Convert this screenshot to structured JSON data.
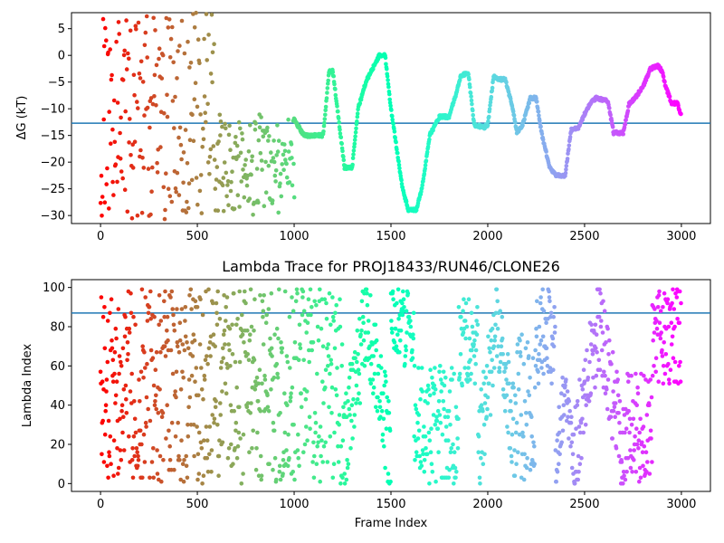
{
  "chart_data": [
    {
      "type": "scatter",
      "title": "",
      "xlabel": "",
      "ylabel": "ΔG (kT)",
      "xlim": [
        -150,
        3150
      ],
      "ylim": [
        -31.5,
        8.0
      ],
      "xticks": [
        0,
        500,
        1000,
        1500,
        2000,
        2500,
        3000
      ],
      "yticks": [
        -30,
        -25,
        -20,
        -15,
        -10,
        -5,
        0,
        5
      ],
      "reference_line": {
        "y": -12.7,
        "color": "#1f77b4"
      },
      "colormap": "rainbow",
      "series": [
        {
          "noisy_segments": [
            [
              0,
              150,
              -31,
              7
            ],
            [
              150,
              600,
              -31,
              8
            ],
            [
              600,
              1000,
              -30,
              -11
            ]
          ],
          "trend_points": [
            [
              1000,
              -12
            ],
            [
              1050,
              -15
            ],
            [
              1150,
              -15
            ],
            [
              1180,
              -3
            ],
            [
              1200,
              -3
            ],
            [
              1260,
              -21
            ],
            [
              1300,
              -21
            ],
            [
              1330,
              -10
            ],
            [
              1370,
              -5
            ],
            [
              1440,
              0
            ],
            [
              1470,
              0
            ],
            [
              1500,
              -10
            ],
            [
              1560,
              -25
            ],
            [
              1590,
              -29
            ],
            [
              1630,
              -29
            ],
            [
              1660,
              -25
            ],
            [
              1700,
              -15
            ],
            [
              1750,
              -11.5
            ],
            [
              1800,
              -11.5
            ],
            [
              1830,
              -8
            ],
            [
              1860,
              -4
            ],
            [
              1880,
              -3.5
            ],
            [
              1900,
              -3.5
            ],
            [
              1930,
              -13
            ],
            [
              1980,
              -13.5
            ],
            [
              2000,
              -13
            ],
            [
              2030,
              -4
            ],
            [
              2060,
              -4.5
            ],
            [
              2090,
              -4.5
            ],
            [
              2130,
              -10
            ],
            [
              2150,
              -14.5
            ],
            [
              2180,
              -13
            ],
            [
              2220,
              -8
            ],
            [
              2250,
              -8
            ],
            [
              2280,
              -15
            ],
            [
              2320,
              -21
            ],
            [
              2350,
              -22.5
            ],
            [
              2400,
              -22.5
            ],
            [
              2430,
              -14
            ],
            [
              2470,
              -13.5
            ],
            [
              2500,
              -11
            ],
            [
              2530,
              -9
            ],
            [
              2560,
              -8
            ],
            [
              2620,
              -8.5
            ],
            [
              2650,
              -14.5
            ],
            [
              2700,
              -14.5
            ],
            [
              2730,
              -9
            ],
            [
              2760,
              -8
            ],
            [
              2800,
              -6
            ],
            [
              2840,
              -2.5
            ],
            [
              2880,
              -2
            ],
            [
              2900,
              -3
            ],
            [
              2920,
              -6
            ],
            [
              2950,
              -9
            ],
            [
              2980,
              -9
            ],
            [
              3000,
              -11.5
            ]
          ]
        }
      ]
    },
    {
      "type": "scatter",
      "title": "Lambda Trace for PROJ18433/RUN46/CLONE26",
      "xlabel": "Frame Index",
      "ylabel": "Lambda Index",
      "xlim": [
        -150,
        3150
      ],
      "ylim": [
        -4,
        104
      ],
      "xticks": [
        0,
        500,
        1000,
        1500,
        2000,
        2500,
        3000
      ],
      "yticks": [
        0,
        20,
        40,
        60,
        80,
        100
      ],
      "reference_line": {
        "y": 87,
        "color": "#1f77b4"
      },
      "colormap": "rainbow",
      "series": [
        {
          "segments": [
            [
              0,
              1000,
              0,
              100,
              "random"
            ],
            [
              1000,
              1250,
              0,
              100,
              "random"
            ],
            [
              1250,
              1500,
              0,
              100,
              "sweep"
            ],
            [
              1500,
              1620,
              60,
              100,
              "random"
            ],
            [
              1620,
              1850,
              0,
              60,
              "random"
            ],
            [
              1850,
              1950,
              50,
              95,
              "random"
            ],
            [
              1950,
              2150,
              0,
              100,
              "sweep"
            ],
            [
              2150,
              2250,
              0,
              80,
              "random"
            ],
            [
              2250,
              2350,
              50,
              100,
              "random"
            ],
            [
              2350,
              2450,
              0,
              60,
              "sweep"
            ],
            [
              2450,
              2700,
              0,
              100,
              "sweep"
            ],
            [
              2700,
              2850,
              0,
              60,
              "random"
            ],
            [
              2850,
              3000,
              50,
              100,
              "random"
            ]
          ]
        }
      ]
    }
  ]
}
